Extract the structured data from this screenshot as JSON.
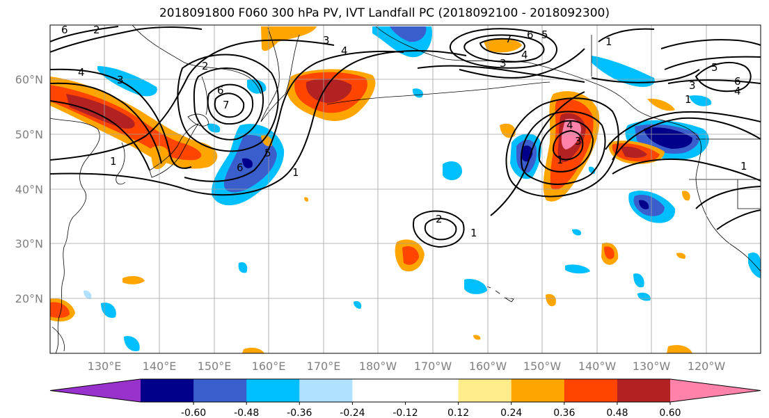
{
  "title": "2018091800 F060 300 hPa PV, IVT Landfall PC (2018092100 - 2018092300)",
  "lat_labels": [
    "60°N",
    "50°N",
    "40°N",
    "30°N",
    "20°N"
  ],
  "lon_labels": [
    "130°E",
    "140°E",
    "150°E",
    "160°E",
    "170°E",
    "180°W",
    "170°W",
    "160°W",
    "150°W",
    "140°W",
    "130°W",
    "120°W"
  ],
  "colorbar": {
    "colors": [
      "#9932cc",
      "#00008b",
      "#3a5fcd",
      "#00bfff",
      "#b0e2ff",
      "#ffffff",
      "#ffffff",
      "#ffec8b",
      "#ffa500",
      "#ff4500",
      "#b22222",
      "#ff82ab"
    ],
    "tick_labels": [
      "-0.60",
      "-0.48",
      "-0.36",
      "-0.24",
      "-0.12",
      "0.12",
      "0.24",
      "0.36",
      "0.48",
      "0.60"
    ]
  },
  "contour_labels": [
    "6",
    "2",
    "4",
    "3",
    "1",
    "2",
    "6",
    "7",
    "5",
    "6",
    "1",
    "3",
    "4",
    "7",
    "6",
    "5",
    "4",
    "3",
    "1",
    "5",
    "6",
    "4",
    "3",
    "1",
    "4",
    "3",
    "1",
    "2",
    "1",
    "1"
  ]
}
